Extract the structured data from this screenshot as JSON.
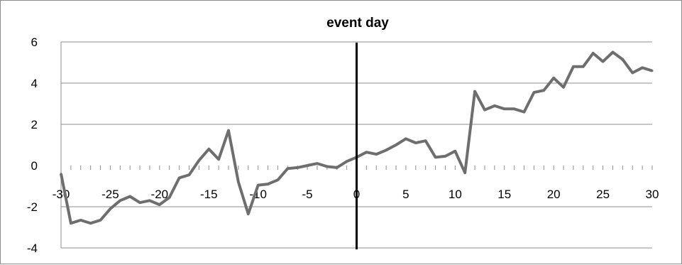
{
  "chart_data": {
    "type": "line",
    "title": "event day",
    "xlabel": "",
    "ylabel": "",
    "xlim": [
      -30,
      30
    ],
    "ylim": [
      -4,
      6
    ],
    "x_ticks": [
      -30,
      -25,
      -20,
      -15,
      -10,
      -5,
      0,
      5,
      10,
      15,
      20,
      25,
      30
    ],
    "y_ticks": [
      -4,
      -2,
      0,
      2,
      4,
      6
    ],
    "grid": "horizontal",
    "legend": "none",
    "event_line_x": 0,
    "line_color": "#6e6e6e",
    "event_line_color": "#000000",
    "series": [
      {
        "x": [
          -30,
          -29,
          -28,
          -27,
          -26,
          -25,
          -24,
          -23,
          -22,
          -21,
          -20,
          -19,
          -18,
          -17,
          -16,
          -15,
          -14,
          -13,
          -12,
          -11,
          -10,
          -9,
          -8,
          -7,
          -6,
          -5,
          -4,
          -3,
          -2,
          -1,
          0,
          1,
          2,
          3,
          4,
          5,
          6,
          7,
          8,
          9,
          10,
          11,
          12,
          13,
          14,
          15,
          16,
          17,
          18,
          19,
          20,
          21,
          22,
          23,
          24,
          25,
          26,
          27,
          28,
          29,
          30
        ],
        "values": [
          -0.4,
          -2.8,
          -2.65,
          -2.8,
          -2.65,
          -2.1,
          -1.7,
          -1.5,
          -1.8,
          -1.7,
          -1.9,
          -1.55,
          -0.6,
          -0.45,
          0.25,
          0.8,
          0.3,
          1.7,
          -0.8,
          -2.35,
          -0.95,
          -0.9,
          -0.7,
          -0.15,
          -0.1,
          0.0,
          0.1,
          -0.05,
          -0.1,
          0.2,
          0.4,
          0.65,
          0.55,
          0.75,
          1.0,
          1.3,
          1.1,
          1.2,
          0.4,
          0.45,
          0.7,
          -0.35,
          3.6,
          2.7,
          2.9,
          2.75,
          2.75,
          2.6,
          3.55,
          3.65,
          4.25,
          3.8,
          4.8,
          4.8,
          5.45,
          5.05,
          5.5,
          5.15,
          4.5,
          4.75,
          4.6
        ]
      }
    ]
  }
}
